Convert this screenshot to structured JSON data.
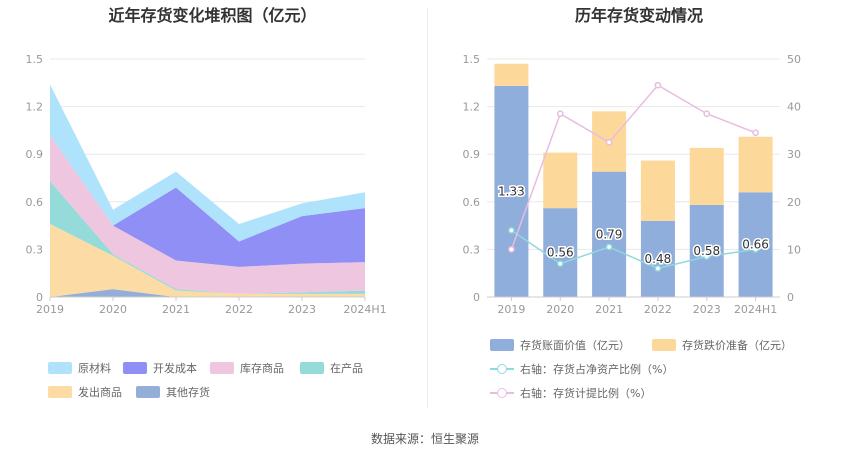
{
  "source": "数据来源：恒生聚源",
  "colors": {
    "原材料": "#aee3fb",
    "开发成本": "#8f8ff5",
    "库存商品": "#efc6df",
    "在产品": "#95dbd9",
    "发出商品": "#fcdca4",
    "其他存货": "#95aed8",
    "book": "#8faedc",
    "provision": "#fdd89b",
    "asset_line": "#8fd9dd",
    "prov_line": "#e8bde0"
  },
  "chart_data": [
    {
      "type": "area",
      "stacked": true,
      "title": "近年存货变化堆积图（亿元）",
      "categories": [
        "2019",
        "2020",
        "2021",
        "2022",
        "2023",
        "2024H1"
      ],
      "ylim": [
        0,
        1.5
      ],
      "yticks": [
        "0",
        "0.3",
        "0.6",
        "0.9",
        "1.2",
        "1.5"
      ],
      "grid": true,
      "legend_position": "bottom",
      "series": [
        {
          "name": "其他存货",
          "values": [
            0.0,
            0.05,
            0.0,
            0.0,
            0.0,
            0.0
          ]
        },
        {
          "name": "发出商品",
          "values": [
            0.46,
            0.21,
            0.04,
            0.02,
            0.02,
            0.02
          ]
        },
        {
          "name": "在产品",
          "values": [
            0.27,
            0.01,
            0.01,
            0.0,
            0.01,
            0.02
          ]
        },
        {
          "name": "库存商品",
          "values": [
            0.29,
            0.18,
            0.18,
            0.17,
            0.18,
            0.18
          ]
        },
        {
          "name": "开发成本",
          "values": [
            0.0,
            0.0,
            0.46,
            0.16,
            0.3,
            0.34
          ]
        },
        {
          "name": "原材料",
          "values": [
            0.32,
            0.1,
            0.1,
            0.11,
            0.08,
            0.1
          ]
        }
      ],
      "legend_order": [
        "原材料",
        "开发成本",
        "库存商品",
        "在产品",
        "发出商品",
        "其他存货"
      ]
    },
    {
      "type": "bar",
      "stacked": true,
      "title": "历年存货变动情况",
      "categories": [
        "2019",
        "2020",
        "2021",
        "2022",
        "2023",
        "2024H1"
      ],
      "ylim": [
        0,
        1.5
      ],
      "yticks": [
        "0",
        "0.3",
        "0.6",
        "0.9",
        "1.2",
        "1.5"
      ],
      "y2lim": [
        0,
        50
      ],
      "y2ticks": [
        "0",
        "10",
        "20",
        "30",
        "40",
        "50"
      ],
      "grid": true,
      "legend_position": "bottom",
      "series": [
        {
          "name": "存货账面价值（亿元）",
          "values": [
            1.33,
            0.56,
            0.79,
            0.48,
            0.58,
            0.66
          ],
          "labels": [
            "1.33",
            "0.56",
            "0.79",
            "0.48",
            "0.58",
            "0.66"
          ]
        },
        {
          "name": "存货跌价准备（亿元）",
          "values": [
            0.14,
            0.35,
            0.38,
            0.38,
            0.36,
            0.35
          ]
        }
      ],
      "lines": [
        {
          "name": "右轴：存货占净资产比例（%）",
          "values": [
            14,
            7,
            10.5,
            6,
            8.5,
            10
          ]
        },
        {
          "name": "右轴：存货计提比例（%）",
          "values": [
            10,
            38.5,
            32.5,
            44.5,
            38.5,
            34.5
          ]
        }
      ]
    }
  ]
}
